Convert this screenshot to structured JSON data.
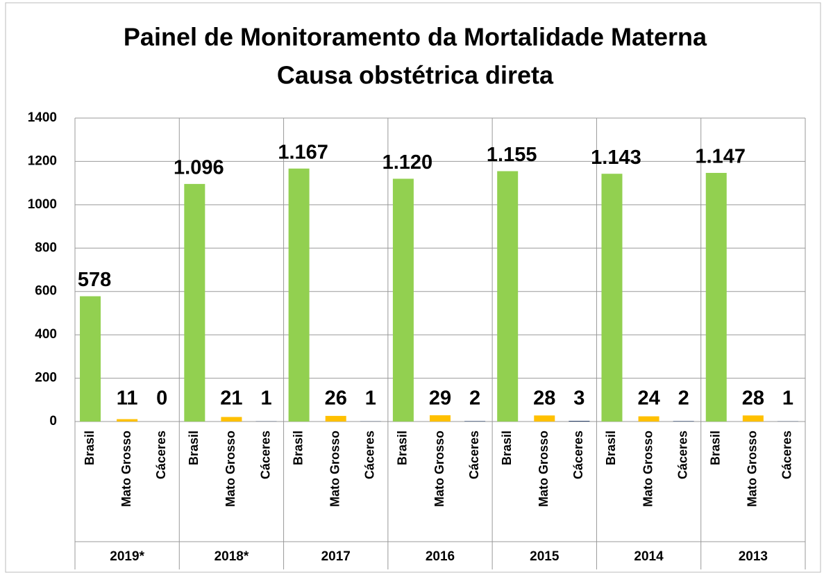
{
  "chart_data": {
    "type": "bar",
    "title": "Painel de Monitoramento da Mortalidade Materna",
    "subtitle": "Causa obstétrica direta",
    "groups": [
      "2019*",
      "2018*",
      "2017",
      "2016",
      "2015",
      "2014",
      "2013"
    ],
    "series": [
      {
        "name": "Brasil",
        "color": "#92d050",
        "values": [
          578,
          1096,
          1167,
          1120,
          1155,
          1143,
          1147
        ],
        "value_labels": [
          "578",
          "1.096",
          "1.167",
          "1.120",
          "1.155",
          "1.143",
          "1.147"
        ]
      },
      {
        "name": "Mato Grosso",
        "color": "#ffc000",
        "values": [
          11,
          21,
          26,
          29,
          28,
          24,
          28
        ]
      },
      {
        "name": "Cáceres",
        "color": "#1f3864",
        "values": [
          0,
          1,
          1,
          2,
          3,
          2,
          1
        ]
      }
    ],
    "ylim": [
      0,
      1400
    ],
    "yticks": [
      0,
      200,
      400,
      600,
      800,
      1000,
      1200,
      1400
    ],
    "grid": true
  }
}
